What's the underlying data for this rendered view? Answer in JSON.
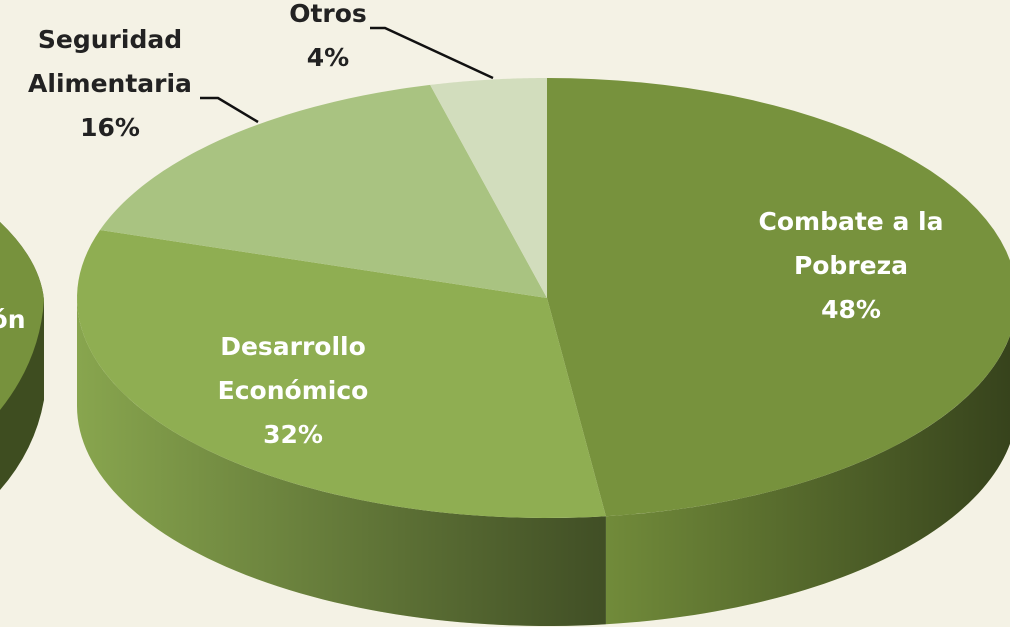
{
  "chart_data": {
    "type": "pie",
    "categories": [
      "Combate a la Pobreza",
      "Desarrollo Económico",
      "Seguridad Alimentaria",
      "Otros"
    ],
    "values": [
      48,
      32,
      16,
      4
    ],
    "value_labels": [
      "48%",
      "32%",
      "16%",
      "4%"
    ],
    "colors": [
      "#77923d",
      "#8fae52",
      "#a9c381",
      "#d2ddbd"
    ],
    "annotations": [
      "ón"
    ]
  }
}
